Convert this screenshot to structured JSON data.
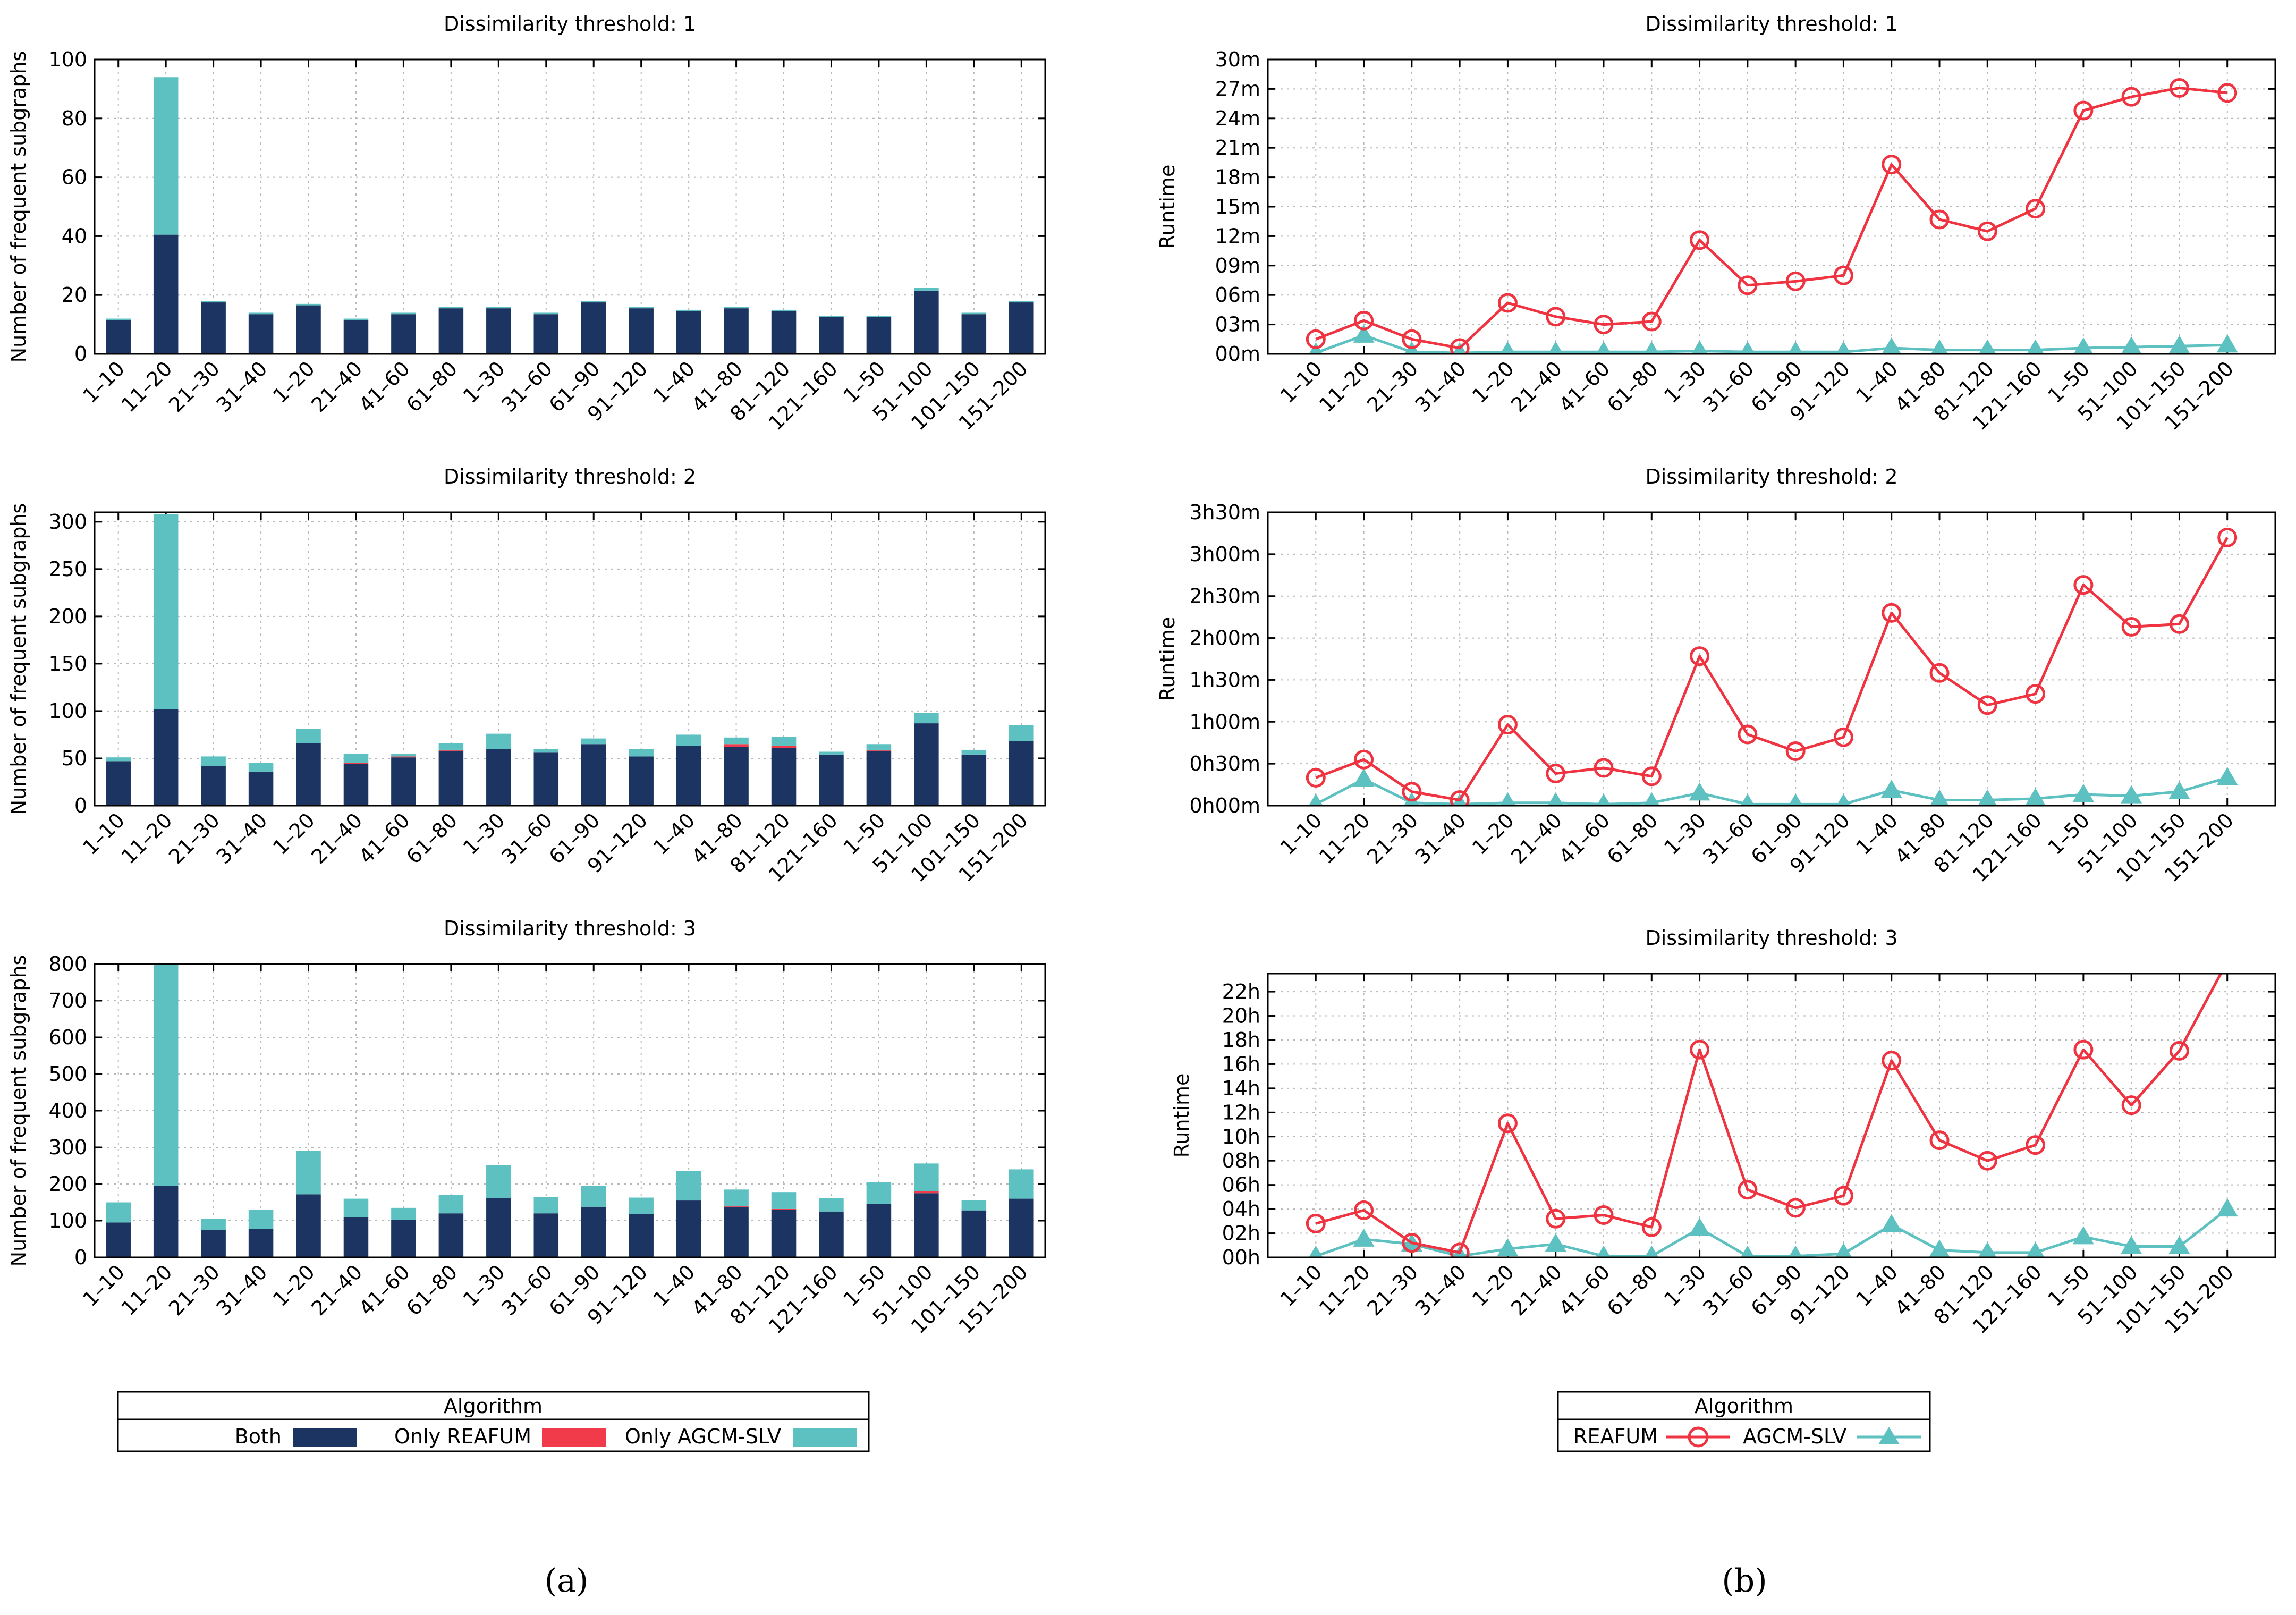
{
  "colors": {
    "both": "#1c3461",
    "only_reafum": "#f23b4a",
    "only_agcm_slv": "#5cc1c0",
    "reafum_line": "#ef3340",
    "agcm_line": "#5cc1c0"
  },
  "panel_labels": {
    "a": "(a)",
    "b": "(b)"
  },
  "chart_data": [
    {
      "type": "bar",
      "stacked": true,
      "title": "Dissimilarity threshold: 1",
      "xlabel": "",
      "ylabel": "Number of frequent subgraphs",
      "categories": [
        "1–10",
        "11–20",
        "21–30",
        "31–40",
        "1–20",
        "21–40",
        "41–60",
        "61–80",
        "1–30",
        "31–60",
        "61–90",
        "91–120",
        "1–40",
        "41–80",
        "81–120",
        "121–160",
        "1–50",
        "51–100",
        "101–150",
        "151–200"
      ],
      "ylim": [
        0,
        100
      ],
      "yticks": [
        0,
        20,
        40,
        60,
        80,
        100
      ],
      "grid": true,
      "series": [
        {
          "name": "Both",
          "color_key": "both",
          "values": [
            11.5,
            40.5,
            17.5,
            13.5,
            16.5,
            11.5,
            13.5,
            15.5,
            15.5,
            13.5,
            17.5,
            15.5,
            14.5,
            15.5,
            14.5,
            12.5,
            12.5,
            21.5,
            13.5,
            17.5
          ]
        },
        {
          "name": "Only REAFUM",
          "color_key": "only_reafum",
          "values": [
            0,
            0,
            0,
            0,
            0,
            0,
            0,
            0,
            0,
            0,
            0,
            0,
            0,
            0,
            0,
            0,
            0,
            0,
            0,
            0
          ]
        },
        {
          "name": "Only AGCM-SLV",
          "color_key": "only_agcm_slv",
          "values": [
            0.5,
            53.5,
            0.5,
            0.5,
            0.5,
            0.5,
            0.5,
            0.5,
            0.5,
            0.5,
            0.5,
            0.5,
            0.5,
            0.5,
            0.5,
            0.5,
            0.5,
            1,
            0.5,
            0.5
          ]
        }
      ]
    },
    {
      "type": "bar",
      "stacked": true,
      "title": "Dissimilarity threshold: 2",
      "xlabel": "",
      "ylabel": "Number of frequent subgraphs",
      "categories": [
        "1–10",
        "11–20",
        "21–30",
        "31–40",
        "1–20",
        "21–40",
        "41–60",
        "61–80",
        "1–30",
        "31–60",
        "61–90",
        "91–120",
        "1–40",
        "41–80",
        "81–120",
        "121–160",
        "1–50",
        "51–100",
        "101–150",
        "151–200"
      ],
      "ylim": [
        0,
        310
      ],
      "yticks": [
        0,
        50,
        100,
        150,
        200,
        250,
        300
      ],
      "grid": true,
      "series": [
        {
          "name": "Both",
          "color_key": "both",
          "values": [
            47,
            102,
            42,
            36,
            66,
            44,
            51,
            58,
            60,
            56,
            65,
            52,
            63,
            62,
            61,
            54,
            58,
            87,
            54,
            68
          ]
        },
        {
          "name": "Only REAFUM",
          "color_key": "only_reafum",
          "values": [
            0,
            0,
            0,
            0,
            0,
            1,
            1,
            1,
            0,
            0,
            0,
            0,
            0,
            3,
            2,
            0,
            1,
            0,
            0,
            0
          ]
        },
        {
          "name": "Only AGCM-SLV",
          "color_key": "only_agcm_slv",
          "values": [
            4,
            206,
            10,
            9,
            15,
            10,
            3,
            7,
            16,
            4,
            6,
            8,
            12,
            7,
            10,
            3,
            6,
            11,
            5,
            17
          ]
        }
      ]
    },
    {
      "type": "bar",
      "stacked": true,
      "title": "Dissimilarity threshold: 3",
      "xlabel": "",
      "ylabel": "Number of frequent subgraphs",
      "categories": [
        "1–10",
        "11–20",
        "21–30",
        "31–40",
        "1–20",
        "21–40",
        "41–60",
        "61–80",
        "1–30",
        "31–60",
        "61–90",
        "91–120",
        "1–40",
        "41–80",
        "81–120",
        "121–160",
        "1–50",
        "51–100",
        "101–150",
        "151–200"
      ],
      "ylim": [
        0,
        800
      ],
      "yticks": [
        0,
        100,
        200,
        300,
        400,
        500,
        600,
        700,
        800
      ],
      "grid": true,
      "series": [
        {
          "name": "Both",
          "color_key": "both",
          "values": [
            95,
            195,
            75,
            78,
            172,
            110,
            102,
            120,
            162,
            120,
            138,
            118,
            155,
            138,
            130,
            125,
            145,
            175,
            128,
            160
          ]
        },
        {
          "name": "Only REAFUM",
          "color_key": "only_reafum",
          "values": [
            0,
            0,
            0,
            0,
            0,
            0,
            0,
            0,
            0,
            0,
            0,
            0,
            0,
            2,
            2,
            0,
            0,
            6,
            0,
            0
          ]
        },
        {
          "name": "Only AGCM-SLV",
          "color_key": "only_agcm_slv",
          "values": [
            55,
            605,
            30,
            52,
            118,
            50,
            33,
            50,
            90,
            45,
            57,
            45,
            80,
            45,
            46,
            37,
            60,
            75,
            28,
            80
          ]
        }
      ]
    },
    {
      "type": "line",
      "title": "Dissimilarity threshold: 1",
      "xlabel": "",
      "ylabel": "Runtime",
      "units": "minutes",
      "categories": [
        "1–10",
        "11–20",
        "21–30",
        "31–40",
        "1–20",
        "21–40",
        "41–60",
        "61–80",
        "1–30",
        "31–60",
        "61–90",
        "91–120",
        "1–40",
        "41–80",
        "81–120",
        "121–160",
        "1–50",
        "51–100",
        "101–150",
        "151–200"
      ],
      "ylim": [
        0,
        30
      ],
      "yticks": [
        0,
        3,
        6,
        9,
        12,
        15,
        18,
        21,
        24,
        27,
        30
      ],
      "ytick_labels": [
        "00m",
        "03m",
        "06m",
        "09m",
        "12m",
        "15m",
        "18m",
        "21m",
        "24m",
        "27m",
        "30m"
      ],
      "grid": true,
      "series": [
        {
          "name": "REAFUM",
          "color_key": "reafum_line",
          "marker": "circle",
          "values": [
            1.5,
            3.4,
            1.5,
            0.6,
            5.2,
            3.8,
            3.0,
            3.3,
            11.6,
            7.0,
            7.4,
            8.0,
            19.3,
            13.7,
            12.5,
            14.8,
            24.8,
            26.2,
            27.1,
            26.6
          ]
        },
        {
          "name": "AGCM-SLV",
          "color_key": "agcm_line",
          "marker": "triangle",
          "values": [
            0.1,
            1.9,
            0.2,
            0.1,
            0.2,
            0.2,
            0.2,
            0.2,
            0.3,
            0.2,
            0.2,
            0.2,
            0.6,
            0.4,
            0.4,
            0.4,
            0.6,
            0.7,
            0.8,
            0.9
          ]
        }
      ]
    },
    {
      "type": "line",
      "title": "Dissimilarity threshold: 2",
      "xlabel": "",
      "ylabel": "Runtime",
      "units": "minutes",
      "categories": [
        "1–10",
        "11–20",
        "21–30",
        "31–40",
        "1–20",
        "21–40",
        "41–60",
        "61–80",
        "1–30",
        "31–60",
        "61–90",
        "91–120",
        "1–40",
        "41–80",
        "81–120",
        "121–160",
        "1–50",
        "51–100",
        "101–150",
        "151–200"
      ],
      "ylim": [
        0,
        210
      ],
      "yticks": [
        0,
        30,
        60,
        90,
        120,
        150,
        180,
        210
      ],
      "ytick_labels": [
        "0h00m",
        "0h30m",
        "1h00m",
        "1h30m",
        "2h00m",
        "2h30m",
        "3h00m",
        "3h30m"
      ],
      "grid": true,
      "series": [
        {
          "name": "REAFUM",
          "color_key": "reafum_line",
          "marker": "circle",
          "values": [
            20,
            33,
            10,
            4,
            58,
            23,
            27,
            21,
            107,
            51,
            39,
            49,
            138,
            95,
            72,
            80,
            158,
            128,
            130,
            192
          ]
        },
        {
          "name": "AGCM-SLV",
          "color_key": "agcm_line",
          "marker": "triangle",
          "values": [
            1,
            19,
            2,
            1,
            2,
            2,
            1,
            2,
            9,
            1,
            1,
            1,
            11,
            4,
            4,
            5,
            8,
            7,
            10,
            20
          ]
        }
      ]
    },
    {
      "type": "line",
      "title": "Dissimilarity threshold: 3",
      "xlabel": "",
      "ylabel": "Runtime",
      "units": "hours",
      "categories": [
        "1–10",
        "11–20",
        "21–30",
        "31–40",
        "1–20",
        "21–40",
        "41–60",
        "61–80",
        "1–30",
        "31–60",
        "61–90",
        "91–120",
        "1–40",
        "41–80",
        "81–120",
        "121–160",
        "1–50",
        "51–100",
        "101–150",
        "151–200"
      ],
      "ylim": [
        0,
        23.5
      ],
      "yticks": [
        0,
        2,
        4,
        6,
        8,
        10,
        12,
        14,
        16,
        18,
        20,
        22
      ],
      "ytick_labels": [
        "00h",
        "02h",
        "04h",
        "06h",
        "08h",
        "10h",
        "12h",
        "14h",
        "16h",
        "18h",
        "20h",
        "22h"
      ],
      "grid": true,
      "clip": true,
      "series": [
        {
          "name": "REAFUM",
          "color_key": "reafum_line",
          "marker": "circle",
          "values": [
            2.8,
            3.9,
            1.2,
            0.4,
            11.1,
            3.2,
            3.5,
            2.5,
            17.2,
            5.6,
            4.1,
            5.1,
            16.3,
            9.7,
            8.0,
            9.3,
            17.2,
            12.6,
            17.1,
            24.5
          ]
        },
        {
          "name": "AGCM-SLV",
          "color_key": "agcm_line",
          "marker": "triangle",
          "values": [
            0.1,
            1.5,
            1.1,
            0.1,
            0.7,
            1.1,
            0.1,
            0.1,
            2.4,
            0.1,
            0.1,
            0.3,
            2.7,
            0.6,
            0.4,
            0.4,
            1.7,
            0.9,
            0.9,
            4.0
          ]
        }
      ]
    }
  ],
  "legend_a": {
    "title": "Algorithm",
    "entries": [
      "Both",
      "Only REAFUM",
      "Only AGCM-SLV"
    ]
  },
  "legend_b": {
    "title": "Algorithm",
    "entries": [
      "REAFUM",
      "AGCM-SLV"
    ]
  }
}
